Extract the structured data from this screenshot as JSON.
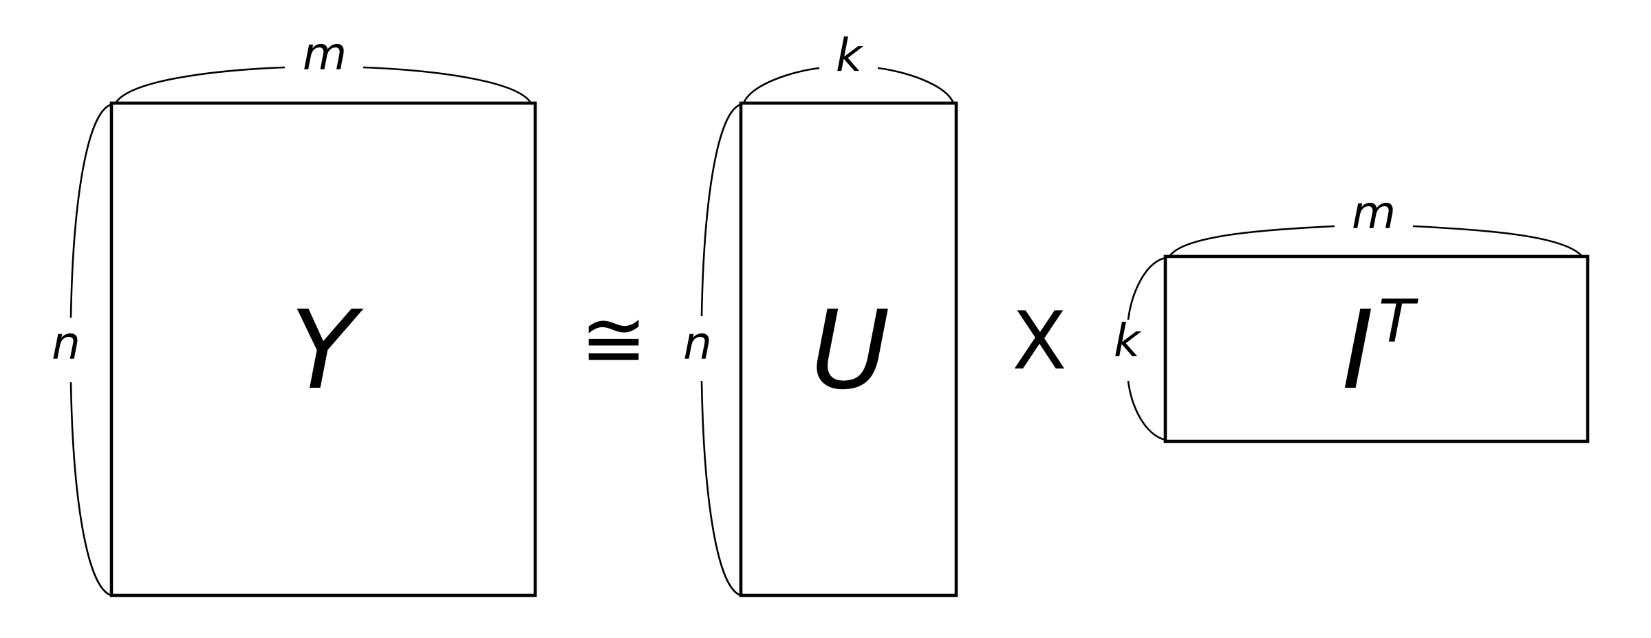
{
  "equation": {
    "lhs": {
      "symbol": "Y",
      "rows_label": "n",
      "cols_label": "m"
    },
    "approx_operator": "≅",
    "factor_left": {
      "symbol": "U",
      "rows_label": "n",
      "cols_label": "k"
    },
    "multiply_operator": "X",
    "factor_right": {
      "symbol": "I",
      "superscript": "T",
      "rows_label": "k",
      "cols_label": "m"
    }
  }
}
